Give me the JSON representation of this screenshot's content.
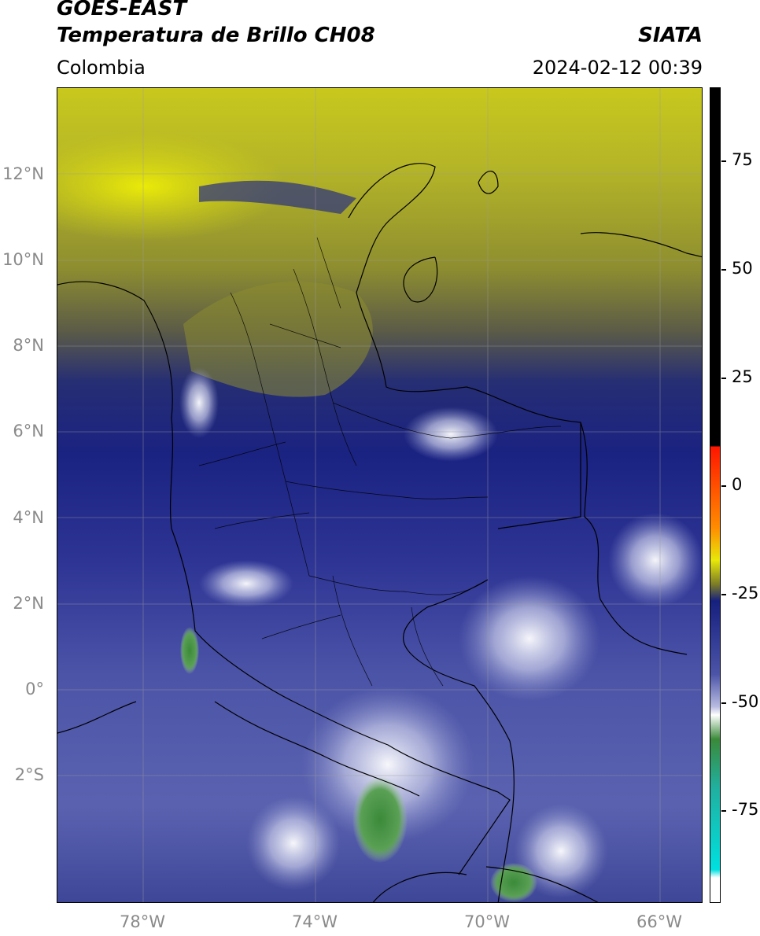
{
  "header": {
    "satellite": "GOES-EAST",
    "product": "Temperatura de Brillo CH08",
    "organization": "SIATA",
    "region": "Colombia",
    "datetime": "2024-02-12 00:39"
  },
  "map": {
    "lon_range": [
      -80,
      -65
    ],
    "lat_range": [
      -5,
      14
    ],
    "lat_labels": [
      "12°N",
      "10°N",
      "8°N",
      "6°N",
      "4°N",
      "2°N",
      "0°",
      "2°S"
    ],
    "lon_labels": [
      "78°W",
      "74°W",
      "70°W",
      "66°W"
    ],
    "grid": true
  },
  "colorbar": {
    "labels": [
      "75",
      "50",
      "25",
      "0",
      "-25",
      "-50",
      "-75"
    ],
    "colors": {
      "black": "#000000",
      "red": "#ff1500",
      "orange": "#ff8c00",
      "yellow": "#e8e80a",
      "olive": "#7a7a28",
      "navy": "#16207e",
      "blue": "#4c54a8",
      "lavender": "#b9bce0",
      "white": "#ffffff",
      "green": "#3a8a3a",
      "teal": "#20b0a0",
      "cyan": "#00e0e0"
    }
  }
}
